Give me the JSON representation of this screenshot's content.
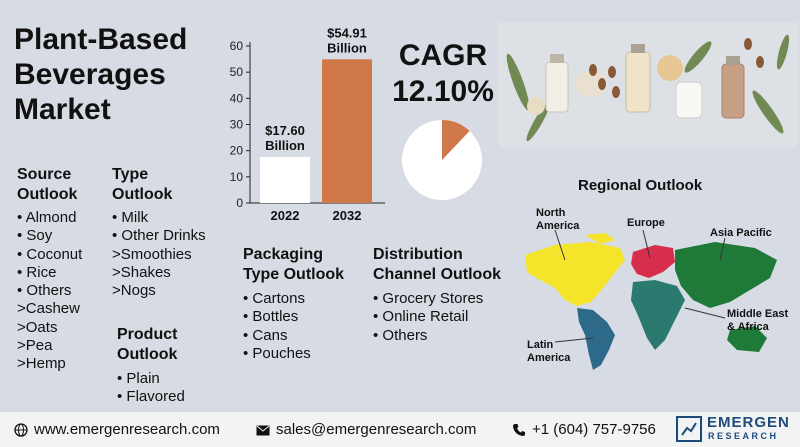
{
  "title_lines": [
    "Plant-Based",
    "Beverages",
    "Market"
  ],
  "chart_data": {
    "type": "bar",
    "categories": [
      "2022",
      "2032"
    ],
    "values": [
      17.6,
      54.91
    ],
    "data_labels": [
      "$17.60 Billion",
      "$54.91 Billion"
    ],
    "yticks": [
      0,
      10,
      20,
      30,
      40,
      50,
      60
    ],
    "ylim": [
      0,
      60
    ],
    "bar_colors": [
      "#ffffff",
      "#d0784a"
    ]
  },
  "cagr": {
    "label": "CAGR",
    "value": "12.10%",
    "pie_share": 0.121,
    "colors": {
      "slice": "#d0784a",
      "rest": "#ffffff"
    }
  },
  "source_outlook": {
    "title_lines": [
      "Source",
      "Outlook"
    ],
    "items": [
      "Almond",
      "Soy",
      "Coconut",
      "Rice",
      "Others"
    ],
    "sub_items": [
      "Cashew",
      "Oats",
      "Pea",
      "Hemp"
    ]
  },
  "type_outlook": {
    "title_lines": [
      "Type",
      "Outlook"
    ],
    "items": [
      "Milk",
      "Other Drinks"
    ],
    "sub_items": [
      "Smoothies",
      "Shakes",
      "Nogs"
    ]
  },
  "product_outlook": {
    "title_lines": [
      "Product",
      "Outlook"
    ],
    "items": [
      "Plain",
      "Flavored"
    ]
  },
  "packaging_outlook": {
    "title_lines": [
      "Packaging",
      "Type Outlook"
    ],
    "items": [
      "Cartons",
      "Bottles",
      "Cans",
      "Pouches"
    ]
  },
  "distribution_outlook": {
    "title_lines": [
      "Distribution",
      "Channel Outlook"
    ],
    "items": [
      "Grocery Stores",
      "Online Retail",
      "Others"
    ]
  },
  "regional": {
    "title": "Regional Outlook",
    "regions": [
      {
        "name": "North America",
        "color": "#f5e52a"
      },
      {
        "name": "Europe",
        "color": "#d72e4b"
      },
      {
        "name": "Asia Pacific",
        "color": "#1f7a3a"
      },
      {
        "name": "Middle East & Africa",
        "color": "#2a7a6f"
      },
      {
        "name": "Latin America",
        "color": "#2d6a8a"
      }
    ],
    "label_lines": {
      "north_america": [
        "North",
        "America"
      ],
      "europe": [
        "Europe"
      ],
      "asia_pacific": [
        "Asia Pacific"
      ],
      "mea": [
        "Middle East",
        "& Africa"
      ],
      "latin_america": [
        "Latin",
        "America"
      ]
    }
  },
  "footer": {
    "website": "www.emergenresearch.com",
    "email": "sales@emergenresearch.com",
    "phone": "+1 (604) 757-9756",
    "logo_top": "EMERGEN",
    "logo_bottom": "RESEARCH"
  }
}
